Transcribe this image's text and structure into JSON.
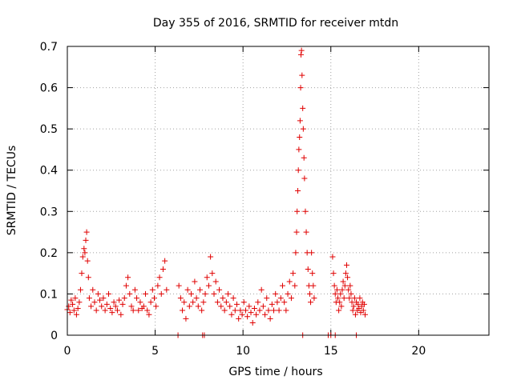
{
  "chart_data": {
    "type": "scatter",
    "title": "Day 355 of 2016, SRMTID for receiver mtdn",
    "xlabel": "GPS time / hours",
    "ylabel": "SRMTID / TECUs",
    "xlim": [
      0,
      24
    ],
    "ylim": [
      0,
      0.7
    ],
    "xticks": [
      0,
      5,
      10,
      15,
      20
    ],
    "yticks": [
      0,
      0.1,
      0.2,
      0.3,
      0.4,
      0.5,
      0.6,
      0.7
    ],
    "grid": true,
    "marker": "+",
    "color": "#e00000",
    "series": [
      {
        "name": "SRMTID",
        "points": [
          [
            0.0,
            0.062
          ],
          [
            0.08,
            0.07
          ],
          [
            0.15,
            0.055
          ],
          [
            0.22,
            0.085
          ],
          [
            0.3,
            0.075
          ],
          [
            0.38,
            0.06
          ],
          [
            0.45,
            0.09
          ],
          [
            0.52,
            0.05
          ],
          [
            0.6,
            0.065
          ],
          [
            0.68,
            0.08
          ],
          [
            0.75,
            0.11
          ],
          [
            0.82,
            0.15
          ],
          [
            0.88,
            0.19
          ],
          [
            0.95,
            0.21
          ],
          [
            1.0,
            0.2
          ],
          [
            1.05,
            0.23
          ],
          [
            1.1,
            0.25
          ],
          [
            1.15,
            0.18
          ],
          [
            1.2,
            0.14
          ],
          [
            1.25,
            0.09
          ],
          [
            1.35,
            0.07
          ],
          [
            1.45,
            0.11
          ],
          [
            1.55,
            0.08
          ],
          [
            1.65,
            0.06
          ],
          [
            1.75,
            0.1
          ],
          [
            1.85,
            0.085
          ],
          [
            1.95,
            0.07
          ],
          [
            2.05,
            0.09
          ],
          [
            2.15,
            0.06
          ],
          [
            2.25,
            0.075
          ],
          [
            2.35,
            0.1
          ],
          [
            2.45,
            0.065
          ],
          [
            2.55,
            0.055
          ],
          [
            2.65,
            0.08
          ],
          [
            2.75,
            0.07
          ],
          [
            2.85,
            0.06
          ],
          [
            2.95,
            0.085
          ],
          [
            3.05,
            0.05
          ],
          [
            3.15,
            0.075
          ],
          [
            3.25,
            0.09
          ],
          [
            3.35,
            0.12
          ],
          [
            3.45,
            0.14
          ],
          [
            3.55,
            0.1
          ],
          [
            3.65,
            0.07
          ],
          [
            3.75,
            0.06
          ],
          [
            3.85,
            0.11
          ],
          [
            3.95,
            0.09
          ],
          [
            4.05,
            0.06
          ],
          [
            4.15,
            0.08
          ],
          [
            4.25,
            0.065
          ],
          [
            4.35,
            0.07
          ],
          [
            4.45,
            0.1
          ],
          [
            4.55,
            0.06
          ],
          [
            4.65,
            0.05
          ],
          [
            4.75,
            0.08
          ],
          [
            4.85,
            0.11
          ],
          [
            4.95,
            0.09
          ],
          [
            5.05,
            0.07
          ],
          [
            5.15,
            0.12
          ],
          [
            5.25,
            0.14
          ],
          [
            5.35,
            0.1
          ],
          [
            5.45,
            0.16
          ],
          [
            5.55,
            0.18
          ],
          [
            5.65,
            0.11
          ],
          [
            6.35,
            0.12
          ],
          [
            6.45,
            0.09
          ],
          [
            6.55,
            0.06
          ],
          [
            6.65,
            0.08
          ],
          [
            6.75,
            0.04
          ],
          [
            6.85,
            0.11
          ],
          [
            6.95,
            0.07
          ],
          [
            7.05,
            0.1
          ],
          [
            7.15,
            0.08
          ],
          [
            7.25,
            0.13
          ],
          [
            7.35,
            0.09
          ],
          [
            7.45,
            0.07
          ],
          [
            7.55,
            0.11
          ],
          [
            7.65,
            0.06
          ],
          [
            7.75,
            0.08
          ],
          [
            7.85,
            0.1
          ],
          [
            7.95,
            0.14
          ],
          [
            8.05,
            0.12
          ],
          [
            8.15,
            0.19
          ],
          [
            8.25,
            0.15
          ],
          [
            8.35,
            0.1
          ],
          [
            8.45,
            0.13
          ],
          [
            8.55,
            0.08
          ],
          [
            8.65,
            0.11
          ],
          [
            8.75,
            0.07
          ],
          [
            8.85,
            0.09
          ],
          [
            8.95,
            0.06
          ],
          [
            9.05,
            0.08
          ],
          [
            9.15,
            0.1
          ],
          [
            9.25,
            0.07
          ],
          [
            9.35,
            0.05
          ],
          [
            9.45,
            0.09
          ],
          [
            9.55,
            0.06
          ],
          [
            9.65,
            0.075
          ],
          [
            9.75,
            0.04
          ],
          [
            9.85,
            0.06
          ],
          [
            9.95,
            0.05
          ],
          [
            10.05,
            0.08
          ],
          [
            10.15,
            0.06
          ],
          [
            10.25,
            0.045
          ],
          [
            10.35,
            0.07
          ],
          [
            10.45,
            0.055
          ],
          [
            10.55,
            0.03
          ],
          [
            10.65,
            0.065
          ],
          [
            10.75,
            0.05
          ],
          [
            10.85,
            0.08
          ],
          [
            10.95,
            0.06
          ],
          [
            11.05,
            0.11
          ],
          [
            11.15,
            0.07
          ],
          [
            11.25,
            0.05
          ],
          [
            11.35,
            0.09
          ],
          [
            11.45,
            0.06
          ],
          [
            11.55,
            0.04
          ],
          [
            11.65,
            0.075
          ],
          [
            11.75,
            0.06
          ],
          [
            11.85,
            0.1
          ],
          [
            11.95,
            0.08
          ],
          [
            12.05,
            0.06
          ],
          [
            12.15,
            0.09
          ],
          [
            12.25,
            0.12
          ],
          [
            12.35,
            0.08
          ],
          [
            12.45,
            0.06
          ],
          [
            12.55,
            0.1
          ],
          [
            12.65,
            0.13
          ],
          [
            12.75,
            0.09
          ],
          [
            12.85,
            0.15
          ],
          [
            12.95,
            0.12
          ],
          [
            13.0,
            0.2
          ],
          [
            13.05,
            0.25
          ],
          [
            13.08,
            0.3
          ],
          [
            13.12,
            0.35
          ],
          [
            13.15,
            0.4
          ],
          [
            13.18,
            0.45
          ],
          [
            13.22,
            0.48
          ],
          [
            13.25,
            0.52
          ],
          [
            13.28,
            0.6
          ],
          [
            13.3,
            0.68
          ],
          [
            13.33,
            0.69
          ],
          [
            13.36,
            0.63
          ],
          [
            13.4,
            0.55
          ],
          [
            13.43,
            0.5
          ],
          [
            13.47,
            0.43
          ],
          [
            13.5,
            0.38
          ],
          [
            13.55,
            0.3
          ],
          [
            13.6,
            0.25
          ],
          [
            13.65,
            0.2
          ],
          [
            13.7,
            0.16
          ],
          [
            13.75,
            0.12
          ],
          [
            13.8,
            0.1
          ],
          [
            13.85,
            0.08
          ],
          [
            13.9,
            0.2
          ],
          [
            13.95,
            0.15
          ],
          [
            14.0,
            0.12
          ],
          [
            14.05,
            0.09
          ],
          [
            15.1,
            0.19
          ],
          [
            15.15,
            0.15
          ],
          [
            15.2,
            0.12
          ],
          [
            15.25,
            0.1
          ],
          [
            15.3,
            0.08
          ],
          [
            15.35,
            0.11
          ],
          [
            15.4,
            0.09
          ],
          [
            15.45,
            0.06
          ],
          [
            15.5,
            0.08
          ],
          [
            15.55,
            0.1
          ],
          [
            15.6,
            0.07
          ],
          [
            15.65,
            0.11
          ],
          [
            15.7,
            0.13
          ],
          [
            15.75,
            0.09
          ],
          [
            15.8,
            0.12
          ],
          [
            15.85,
            0.15
          ],
          [
            15.9,
            0.17
          ],
          [
            15.95,
            0.14
          ],
          [
            16.0,
            0.11
          ],
          [
            16.05,
            0.09
          ],
          [
            16.1,
            0.12
          ],
          [
            16.15,
            0.1
          ],
          [
            16.2,
            0.08
          ],
          [
            16.25,
            0.06
          ],
          [
            16.3,
            0.07
          ],
          [
            16.35,
            0.09
          ],
          [
            16.4,
            0.05
          ],
          [
            16.45,
            0.08
          ],
          [
            16.5,
            0.06
          ],
          [
            16.55,
            0.075
          ],
          [
            16.6,
            0.065
          ],
          [
            16.65,
            0.09
          ],
          [
            16.7,
            0.055
          ],
          [
            16.75,
            0.07
          ],
          [
            16.8,
            0.08
          ],
          [
            16.85,
            0.06
          ],
          [
            16.9,
            0.075
          ],
          [
            16.95,
            0.05
          ],
          [
            6.3,
            0.0
          ],
          [
            7.7,
            0.0
          ],
          [
            7.8,
            0.0
          ],
          [
            13.4,
            0.0
          ],
          [
            14.85,
            0.0
          ],
          [
            15.0,
            0.0
          ],
          [
            15.25,
            0.0
          ],
          [
            16.45,
            0.0
          ]
        ]
      }
    ]
  }
}
